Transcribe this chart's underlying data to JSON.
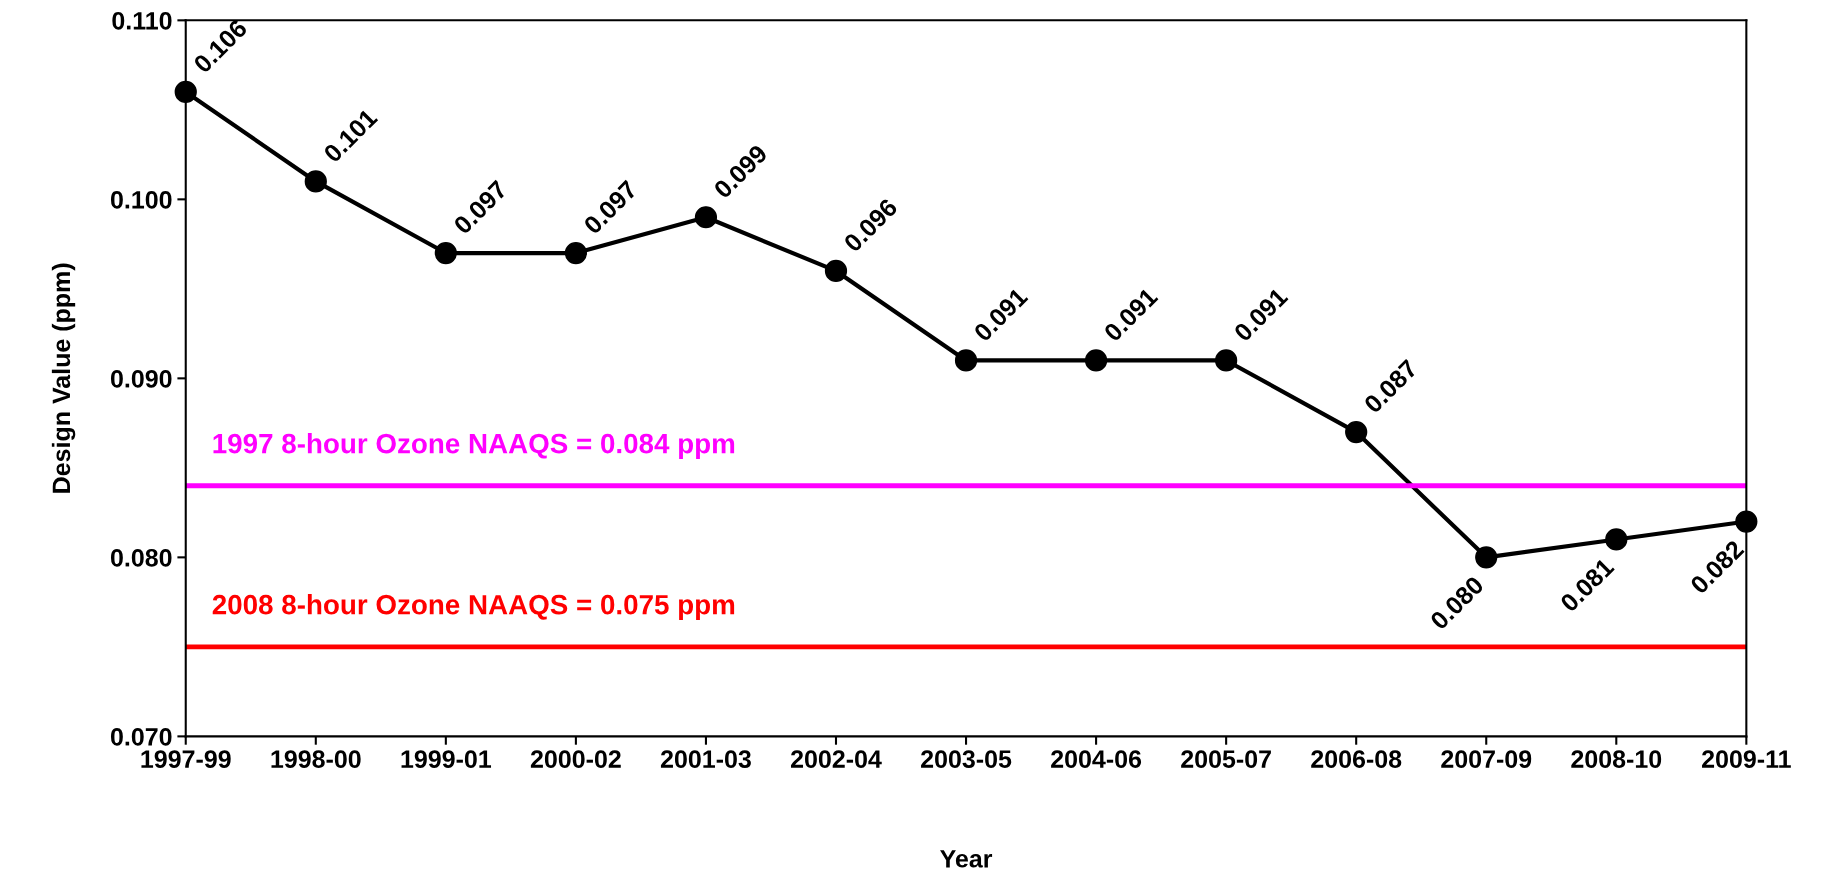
{
  "chart_data": {
    "type": "line",
    "xlabel": "Year",
    "ylabel": "Design Value (ppm)",
    "categories": [
      "1997-99",
      "1998-00",
      "1999-01",
      "2000-02",
      "2001-03",
      "2002-04",
      "2003-05",
      "2004-06",
      "2005-07",
      "2006-08",
      "2007-09",
      "2008-10",
      "2009-11"
    ],
    "series": [
      {
        "color": "#000000",
        "values": [
          0.106,
          0.101,
          0.097,
          0.097,
          0.099,
          0.096,
          0.091,
          0.091,
          0.091,
          0.087,
          0.08,
          0.081,
          0.082
        ]
      }
    ],
    "ylim": [
      0.07,
      0.11
    ],
    "yticks": [
      {
        "value": 0.07,
        "label": "0.070"
      },
      {
        "value": 0.08,
        "label": "0.080"
      },
      {
        "value": 0.09,
        "label": "0.090"
      },
      {
        "value": 0.1,
        "label": "0.100"
      },
      {
        "value": 0.11,
        "label": "0.110"
      }
    ],
    "ref_lines": [
      {
        "axis": "y",
        "value": 0.084,
        "label": "1997 8-hour Ozone NAAQS = 0.084 ppm",
        "color": "#ff00ff"
      },
      {
        "axis": "y",
        "value": 0.075,
        "label": "2008 8-hour Ozone NAAQS = 0.075 ppm",
        "color": "#ff0000"
      }
    ],
    "value_labels": [
      "0.106",
      "0.101",
      "0.097",
      "0.097",
      "0.099",
      "0.096",
      "0.091",
      "0.091",
      "0.091",
      "0.087",
      "0.080",
      "0.081",
      "0.082"
    ],
    "marker": "circle",
    "line_style": "solid",
    "grid": false,
    "legend": false
  }
}
